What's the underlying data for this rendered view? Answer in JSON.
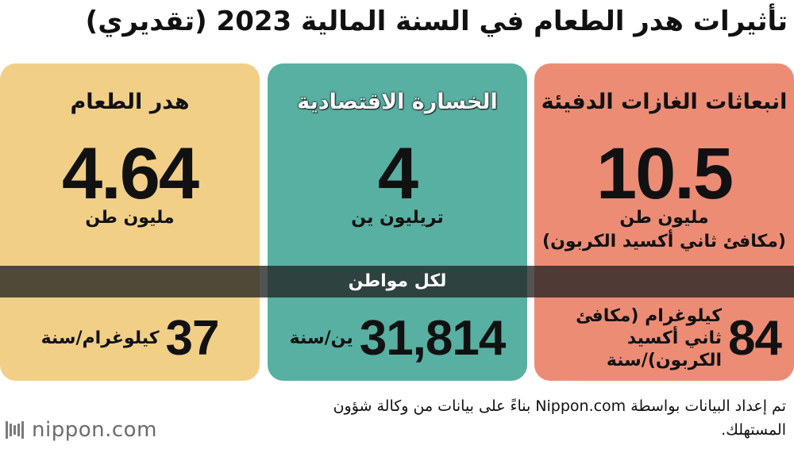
{
  "title": "تأثيرات هدر الطعام في السنة المالية 2023 (تقديري)",
  "cards": {
    "ghg": {
      "title": "انبعاثات الغازات الدفيئة",
      "value": "10.5",
      "unit_line1": "مليون طن",
      "unit_line2": "(مكافئ ثاني أكسيد الكربون)",
      "per_value": "84",
      "per_unit": "كيلوغرام (مكافئ ثاني أكسيد الكربون)/سنة",
      "color": "#ec8c75"
    },
    "econ": {
      "title": "الخسارة الاقتصادية",
      "value": "4",
      "unit_line1": "تريليون ين",
      "per_value": "31,814",
      "per_unit": "ين/سنة",
      "color": "#57b0a2"
    },
    "waste": {
      "title": "هدر الطعام",
      "value": "4.64",
      "unit_line1": "مليون طن",
      "per_value": "37",
      "per_unit": "كيلوغرام/سنة",
      "color": "#f1cf86"
    }
  },
  "band": {
    "label": "لكل مواطن"
  },
  "source": "تم إعداد البيانات بواسطة Nippon.com بناءً على بيانات من وكالة شؤون المستهلك.",
  "logo": {
    "text": "nippon.com",
    "icon": "nippon-logo-icon"
  }
}
